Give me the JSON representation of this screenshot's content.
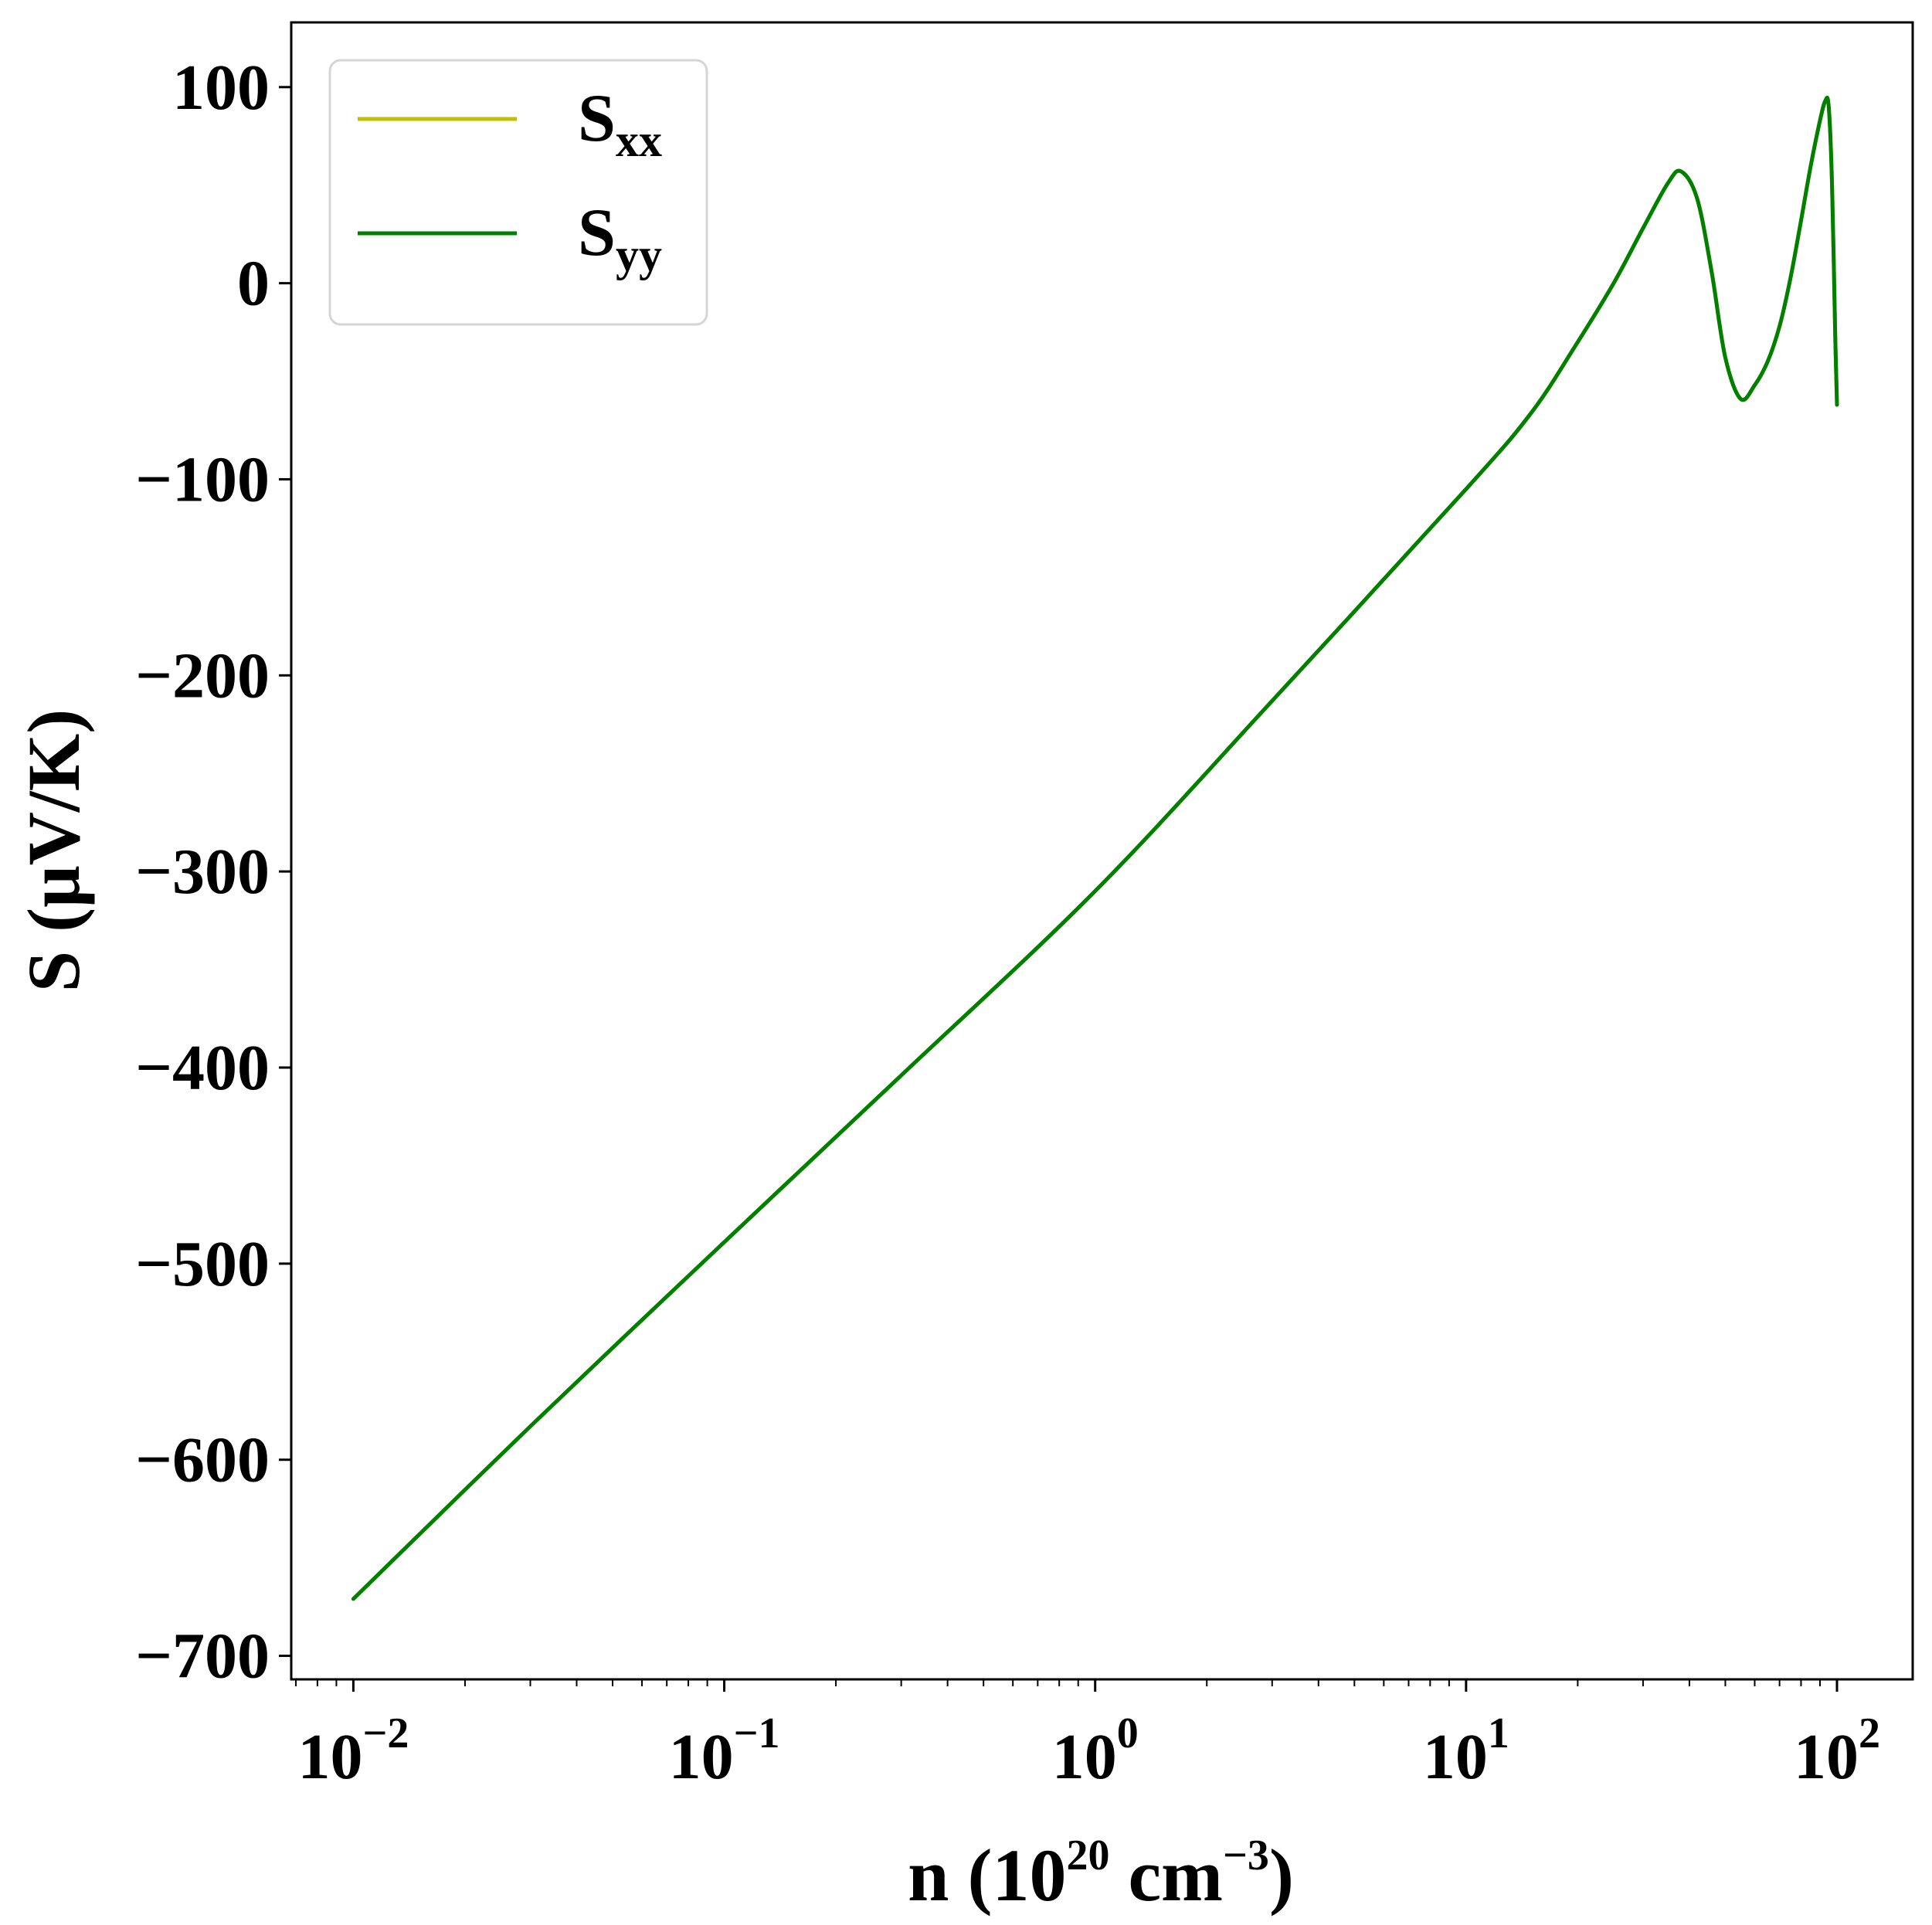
{
  "chart_data": {
    "type": "line",
    "title": "",
    "xlabel": {
      "base": "n (10",
      "exp": "20",
      "mid": " cm",
      "exp2": "−3",
      "end": ")"
    },
    "ylabel": "S (μV/K)",
    "xscale": "log",
    "xlim": [
      0.0068,
      160
    ],
    "ylim": [
      -712,
      133
    ],
    "x_ticks": [
      {
        "value": 0.01,
        "base": "10",
        "exp": "−2"
      },
      {
        "value": 0.1,
        "base": "10",
        "exp": "−1"
      },
      {
        "value": 1,
        "base": "10",
        "exp": "0"
      },
      {
        "value": 10,
        "base": "10",
        "exp": "1"
      },
      {
        "value": 100,
        "base": "10",
        "exp": "2"
      }
    ],
    "y_ticks": [
      {
        "value": 100,
        "label": "100"
      },
      {
        "value": 0,
        "label": "0"
      },
      {
        "value": -100,
        "label": "−100"
      },
      {
        "value": -200,
        "label": "−200"
      },
      {
        "value": -300,
        "label": "−300"
      },
      {
        "value": -400,
        "label": "−400"
      },
      {
        "value": -500,
        "label": "−500"
      },
      {
        "value": -600,
        "label": "−600"
      },
      {
        "value": -700,
        "label": "−700"
      }
    ],
    "grid": false,
    "legend_position": "upper-left",
    "series": [
      {
        "name": "S",
        "name_sub": "xx",
        "color": "#bfbf00",
        "x": [
          0.01,
          0.03,
          0.1,
          0.3,
          1,
          3,
          10,
          15,
          20,
          25,
          30,
          35,
          38,
          42,
          46,
          50,
          55,
          60,
          65,
          70,
          75,
          80,
          85,
          90,
          93,
          95,
          97,
          99,
          100
        ],
        "y": [
          -671,
          -583,
          -489,
          -404,
          -310,
          -213,
          -105,
          -66,
          -30,
          0,
          28,
          51,
          57,
          43,
          5,
          -38,
          -59,
          -52,
          -40,
          -22,
          3,
          32,
          60,
          83,
          93,
          90,
          50,
          -30,
          -62
        ]
      },
      {
        "name": "S",
        "name_sub": "yy",
        "color": "#008000",
        "x": [
          0.01,
          0.03,
          0.1,
          0.3,
          1,
          3,
          10,
          15,
          20,
          25,
          30,
          35,
          38,
          42,
          46,
          50,
          55,
          60,
          65,
          70,
          75,
          80,
          85,
          90,
          93,
          95,
          97,
          99,
          100
        ],
        "y": [
          -671,
          -583,
          -489,
          -404,
          -310,
          -213,
          -105,
          -66,
          -30,
          0,
          28,
          51,
          57,
          43,
          5,
          -38,
          -59,
          -52,
          -40,
          -22,
          3,
          32,
          60,
          83,
          93,
          90,
          50,
          -30,
          -62
        ]
      }
    ]
  }
}
